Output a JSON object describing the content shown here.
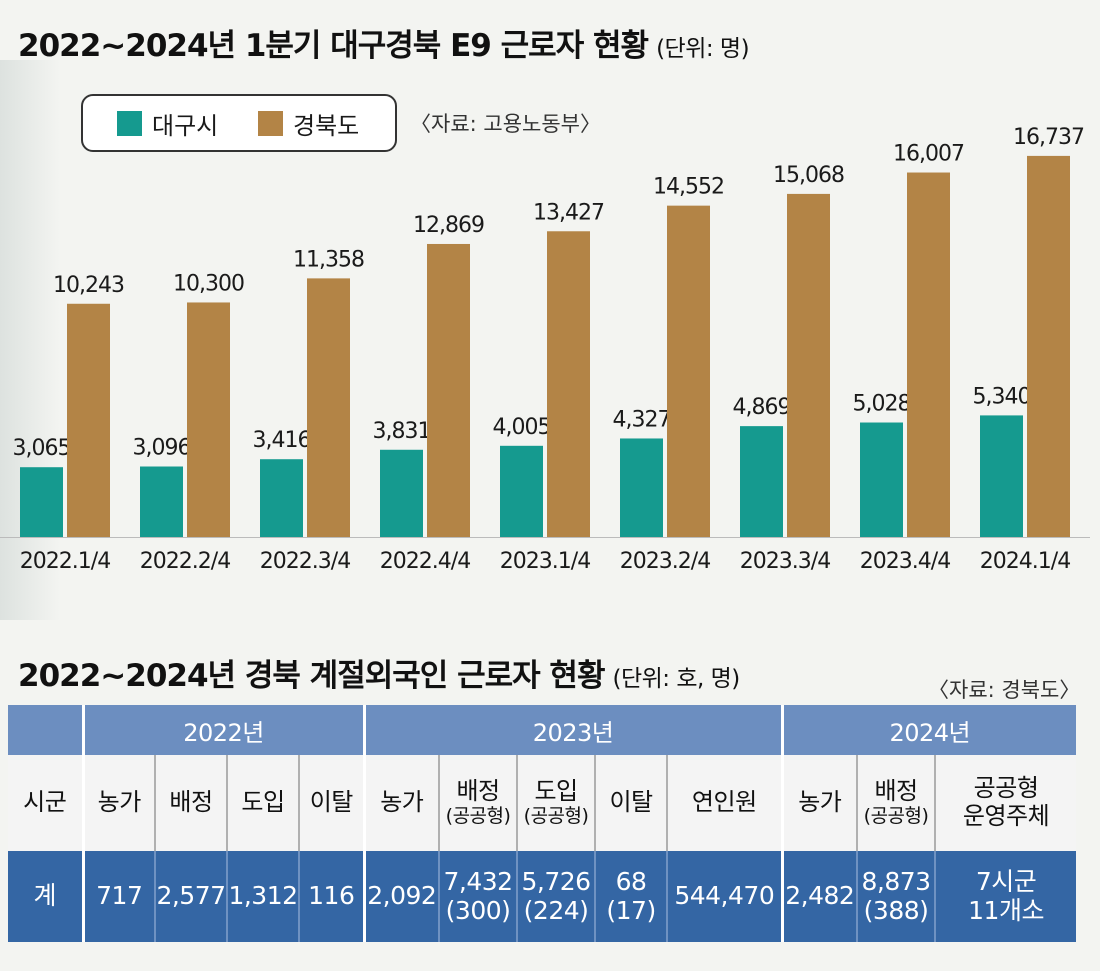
{
  "chart_title": "2022~2024년 1분기 대구경북 E9 근로자 현황",
  "chart_unit": "(단위: 명)",
  "chart_source": "〈자료: 고용노동부〉",
  "colors": {
    "daegu": "#159a8f",
    "gyeongbuk": "#b38446"
  },
  "chart_data": {
    "type": "bar",
    "title": "2022~2024년 1분기 대구경북 E9 근로자 현황",
    "unit": "명",
    "categories": [
      "2022.1/4",
      "2022.2/4",
      "2022.3/4",
      "2022.4/4",
      "2023.1/4",
      "2023.2/4",
      "2023.3/4",
      "2023.4/4",
      "2024.1/4"
    ],
    "series": [
      {
        "name": "대구시",
        "values": [
          3065,
          3096,
          3416,
          3831,
          4005,
          4327,
          4869,
          5028,
          5340
        ],
        "labels": [
          "3,065",
          "3,096",
          "3,416",
          "3,831",
          "4,005",
          "4,327",
          "4,869",
          "5,028",
          "5,340"
        ]
      },
      {
        "name": "경북도",
        "values": [
          10243,
          10300,
          11358,
          12869,
          13427,
          14552,
          15068,
          16007,
          16737
        ],
        "labels": [
          "10,243",
          "10,300",
          "11,358",
          "12,869",
          "13,427",
          "14,552",
          "15,068",
          "16,007",
          "16,737"
        ]
      }
    ],
    "ylim": [
      0,
      18500
    ],
    "legend": "top-left",
    "grid": false
  },
  "table_title": "2022~2024년 경북 계절외국인 근로자 현황",
  "table_unit": "(단위: 호, 명)",
  "table_source": "〈자료: 경북도〉",
  "table": {
    "years": [
      "2022년",
      "2023년",
      "2024년"
    ],
    "headers": {
      "region": "시군",
      "y2022": {
        "farms": "농가",
        "alloc": "배정",
        "intro": "도입",
        "leave": "이탈"
      },
      "y2023": {
        "farms": "농가",
        "alloc": "배정",
        "alloc_sub": "(공공형)",
        "intro": "도입",
        "intro_sub": "(공공형)",
        "leave": "이탈",
        "total": "연인원"
      },
      "y2024": {
        "farms": "농가",
        "alloc": "배정",
        "alloc_sub": "(공공형)",
        "public1": "공공형",
        "public2": "운영주체"
      }
    },
    "total_row": {
      "region": "계",
      "y2022": {
        "farms": "717",
        "alloc": "2,577",
        "intro": "1,312",
        "leave": "116"
      },
      "y2023": {
        "farms": "2,092",
        "alloc": "7,432",
        "alloc_sub": "(300)",
        "intro": "5,726",
        "intro_sub": "(224)",
        "leave": "68",
        "leave_sub": "(17)",
        "total": "544,470"
      },
      "y2024": {
        "farms": "2,482",
        "alloc": "8,873",
        "alloc_sub": "(388)",
        "public1": "7시군",
        "public2": "11개소"
      }
    }
  }
}
